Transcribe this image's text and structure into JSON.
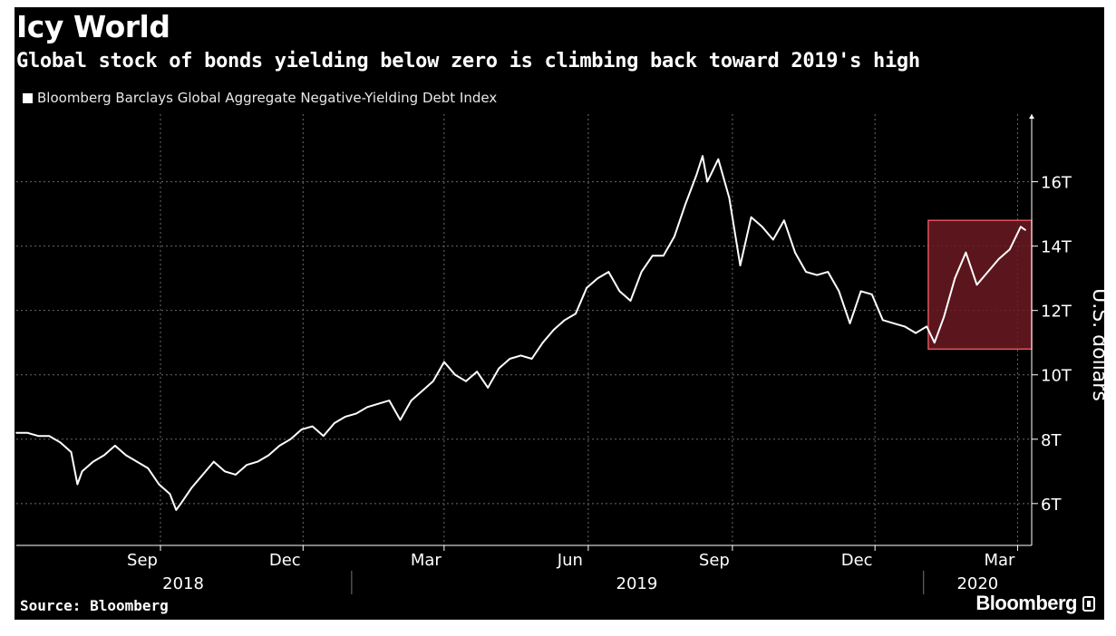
{
  "header": {
    "title": "Icy World",
    "subtitle": "Global stock of bonds yielding below zero is climbing back toward 2019's high",
    "legend_label": "Bloomberg Barclays Global Aggregate Negative-Yielding Debt Index"
  },
  "footer": {
    "source": "Source: Bloomberg",
    "brand": "Bloomberg"
  },
  "colors": {
    "background": "#000000",
    "line": "#ffffff",
    "highlight_fill": "#6b1a22",
    "highlight_border": "#e0525c",
    "grid": "#6a6a6a"
  },
  "chart_data": {
    "type": "line",
    "title": "Icy World",
    "subtitle": "Global stock of bonds yielding below zero is climbing back toward 2019's high",
    "ylabel": "U.S. dollars",
    "ylim": [
      4.7,
      18.1
    ],
    "xlim": [
      "2018-06-01",
      "2020-03-10"
    ],
    "y_ticks": [
      {
        "value": 6,
        "label": "6T"
      },
      {
        "value": 8,
        "label": "8T"
      },
      {
        "value": 10,
        "label": "10T"
      },
      {
        "value": 12,
        "label": "12T"
      },
      {
        "value": 14,
        "label": "14T"
      },
      {
        "value": 16,
        "label": "16T"
      }
    ],
    "x_ticks": [
      {
        "date": "2018-09-01",
        "label": "Sep"
      },
      {
        "date": "2018-12-01",
        "label": "Dec"
      },
      {
        "date": "2019-03-01",
        "label": "Mar"
      },
      {
        "date": "2019-06-01",
        "label": "Jun"
      },
      {
        "date": "2019-09-01",
        "label": "Sep"
      },
      {
        "date": "2019-12-01",
        "label": "Dec"
      },
      {
        "date": "2020-03-01",
        "label": "Mar"
      }
    ],
    "year_labels": [
      {
        "label": "2018",
        "from": "2018-06-01",
        "to": "2018-12-31"
      },
      {
        "label": "2019",
        "from": "2019-01-01",
        "to": "2019-12-31"
      },
      {
        "label": "2020",
        "from": "2020-01-01",
        "to": "2020-03-10"
      }
    ],
    "grid": true,
    "legend_position": "top-left",
    "highlight_region": {
      "x_from": "2020-01-04",
      "x_to": "2020-03-10",
      "y_from": 10.8,
      "y_to": 14.8
    },
    "series": [
      {
        "name": "Bloomberg Barclays Global Aggregate Negative-Yielding Debt Index",
        "x": [
          "2018-06-01",
          "2018-06-08",
          "2018-06-15",
          "2018-06-22",
          "2018-06-29",
          "2018-07-06",
          "2018-07-10",
          "2018-07-13",
          "2018-07-20",
          "2018-07-27",
          "2018-08-03",
          "2018-08-10",
          "2018-08-17",
          "2018-08-24",
          "2018-08-31",
          "2018-09-07",
          "2018-09-11",
          "2018-09-14",
          "2018-09-21",
          "2018-09-28",
          "2018-10-05",
          "2018-10-12",
          "2018-10-19",
          "2018-10-26",
          "2018-11-02",
          "2018-11-09",
          "2018-11-16",
          "2018-11-23",
          "2018-11-30",
          "2018-12-07",
          "2018-12-14",
          "2018-12-21",
          "2018-12-28",
          "2019-01-04",
          "2019-01-11",
          "2019-01-18",
          "2019-01-25",
          "2019-02-01",
          "2019-02-08",
          "2019-02-15",
          "2019-02-22",
          "2019-03-01",
          "2019-03-08",
          "2019-03-15",
          "2019-03-22",
          "2019-03-29",
          "2019-04-05",
          "2019-04-12",
          "2019-04-19",
          "2019-04-26",
          "2019-05-03",
          "2019-05-10",
          "2019-05-17",
          "2019-05-24",
          "2019-05-31",
          "2019-06-07",
          "2019-06-14",
          "2019-06-21",
          "2019-06-28",
          "2019-07-05",
          "2019-07-12",
          "2019-07-19",
          "2019-07-26",
          "2019-08-02",
          "2019-08-09",
          "2019-08-13",
          "2019-08-16",
          "2019-08-23",
          "2019-08-30",
          "2019-09-06",
          "2019-09-13",
          "2019-09-20",
          "2019-09-27",
          "2019-10-04",
          "2019-10-11",
          "2019-10-18",
          "2019-10-25",
          "2019-11-01",
          "2019-11-08",
          "2019-11-15",
          "2019-11-22",
          "2019-11-29",
          "2019-12-06",
          "2019-12-13",
          "2019-12-20",
          "2019-12-27",
          "2020-01-03",
          "2020-01-08",
          "2020-01-14",
          "2020-01-21",
          "2020-01-28",
          "2020-02-04",
          "2020-02-11",
          "2020-02-18",
          "2020-02-25",
          "2020-03-03",
          "2020-03-06"
        ],
        "values": [
          8.2,
          8.2,
          8.1,
          8.1,
          7.9,
          7.6,
          6.6,
          7.0,
          7.3,
          7.5,
          7.8,
          7.5,
          7.3,
          7.1,
          6.6,
          6.3,
          5.8,
          6.0,
          6.5,
          6.9,
          7.3,
          7.0,
          6.9,
          7.2,
          7.3,
          7.5,
          7.8,
          8.0,
          8.3,
          8.4,
          8.1,
          8.5,
          8.7,
          8.8,
          9.0,
          9.1,
          9.2,
          8.6,
          9.2,
          9.5,
          9.8,
          10.4,
          10.0,
          9.8,
          10.1,
          9.6,
          10.2,
          10.5,
          10.6,
          10.5,
          11.0,
          11.4,
          11.7,
          11.9,
          12.7,
          13.0,
          13.2,
          12.6,
          12.3,
          13.2,
          13.7,
          13.7,
          14.3,
          15.3,
          16.2,
          16.8,
          16.0,
          16.7,
          15.5,
          13.4,
          14.9,
          14.6,
          14.2,
          14.8,
          13.8,
          13.2,
          13.1,
          13.2,
          12.6,
          11.6,
          12.6,
          12.5,
          11.7,
          11.6,
          11.5,
          11.3,
          11.5,
          11.0,
          11.8,
          13.0,
          13.8,
          12.8,
          13.2,
          13.6,
          13.9,
          14.6,
          14.5
        ]
      }
    ]
  }
}
